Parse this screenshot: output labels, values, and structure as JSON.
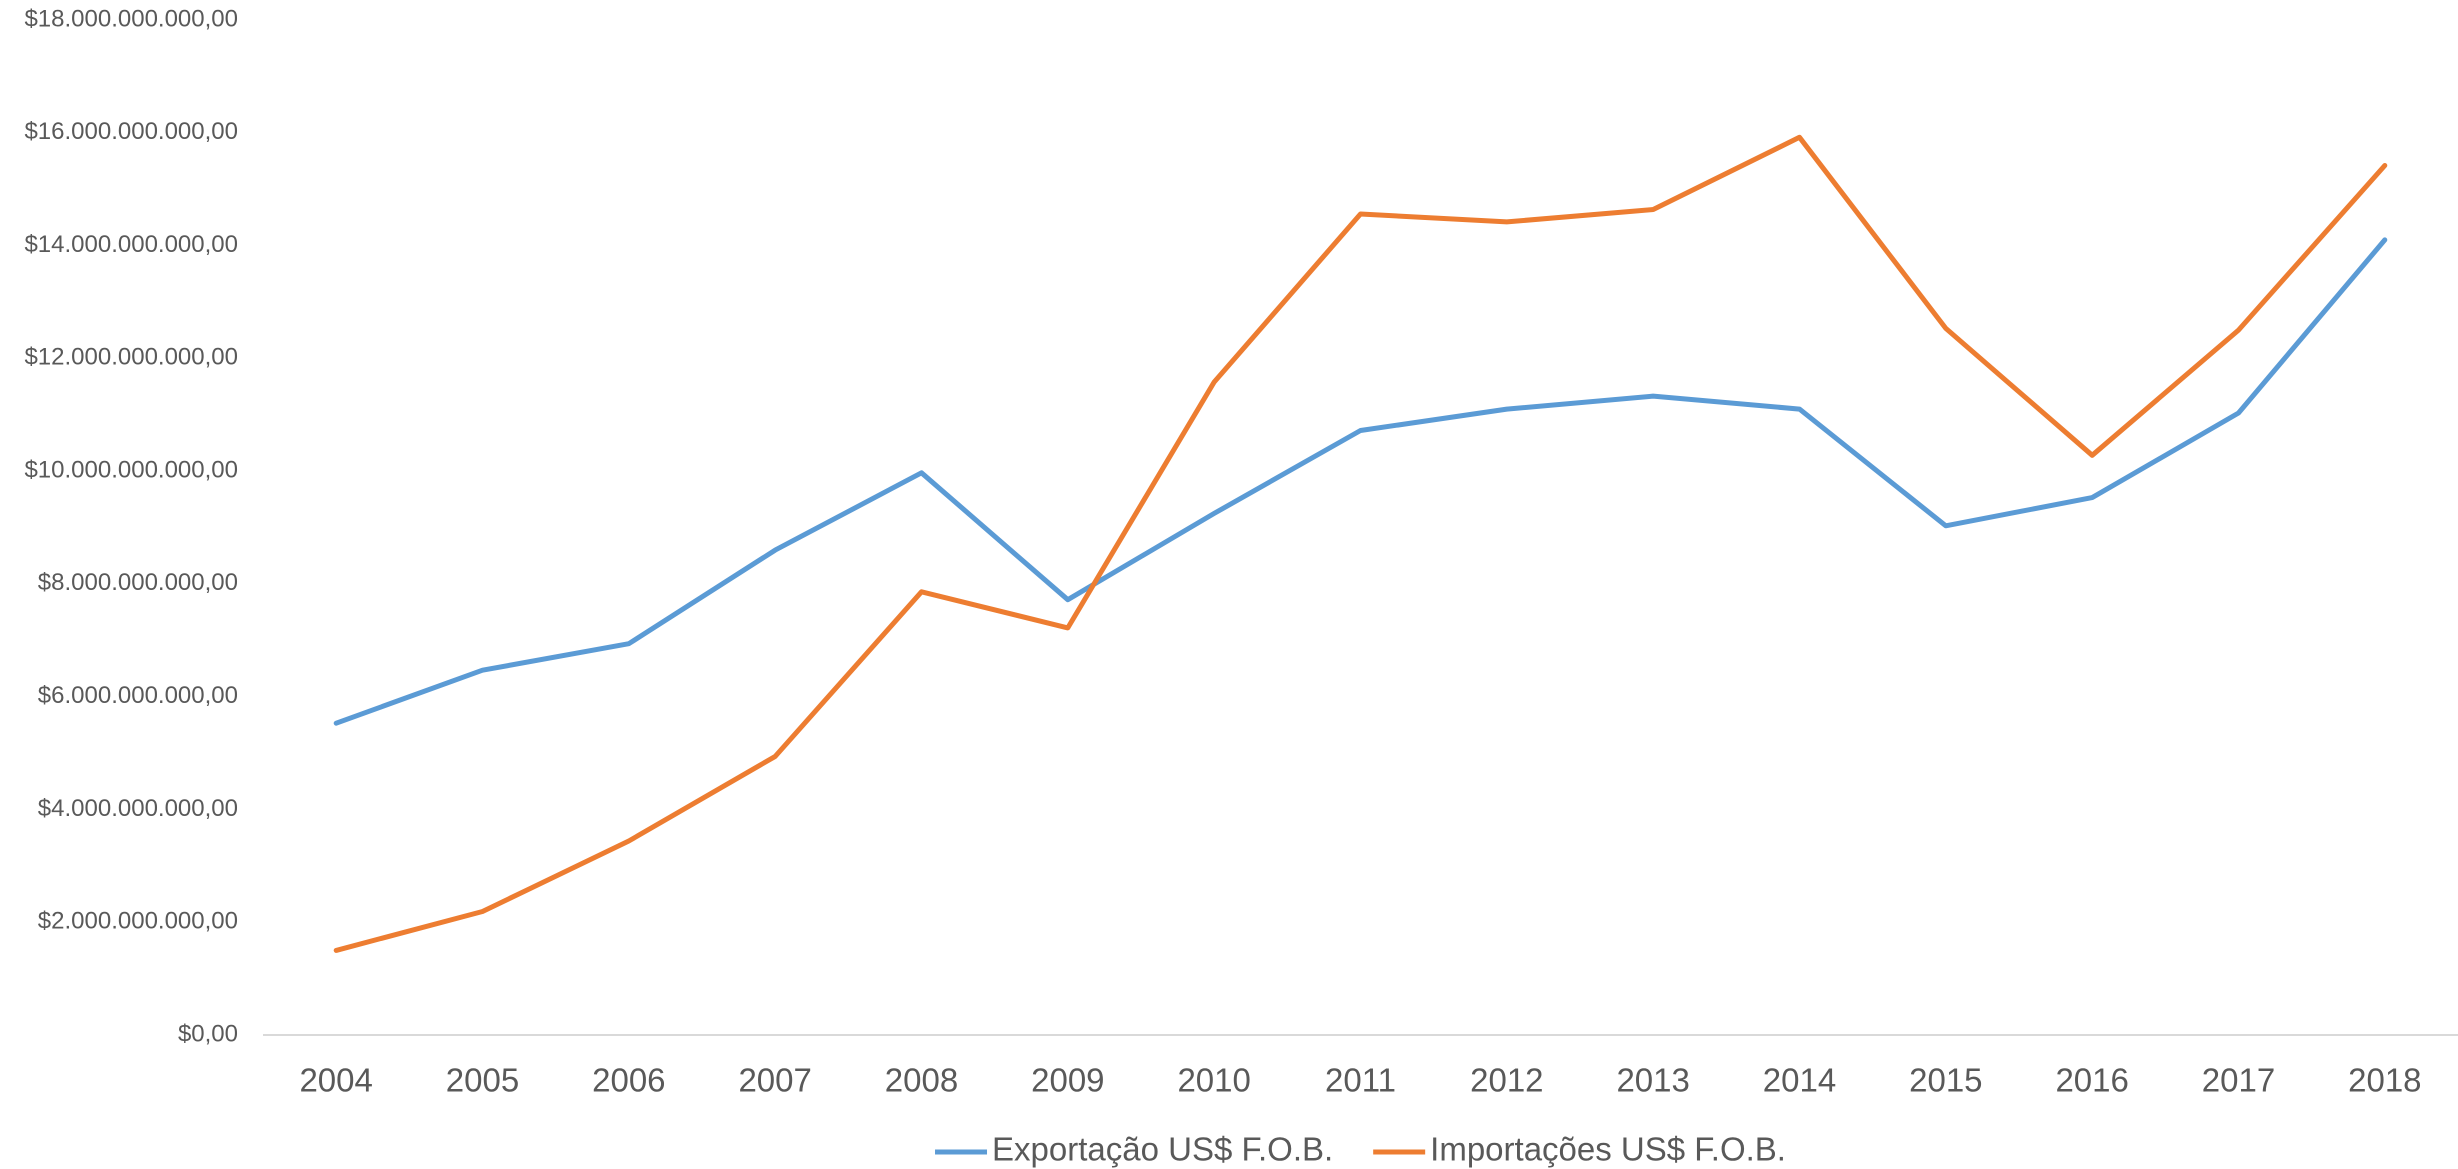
{
  "chart_data": {
    "type": "line",
    "categories": [
      "2004",
      "2005",
      "2006",
      "2007",
      "2008",
      "2009",
      "2010",
      "2011",
      "2012",
      "2013",
      "2014",
      "2015",
      "2016",
      "2017",
      "2018"
    ],
    "series": [
      {
        "name": "Exportação US$ F.O.B.",
        "color": "#5b9bd5",
        "values": [
          5530000000,
          6470000000,
          6940000000,
          8600000000,
          9970000000,
          7720000000,
          9250000000,
          10720000000,
          11100000000,
          11330000000,
          11100000000,
          9030000000,
          9530000000,
          11030000000,
          14100000000
        ]
      },
      {
        "name": "Importações US$ F.O.B.",
        "color": "#ed7d31",
        "values": [
          1500000000,
          2190000000,
          3440000000,
          4940000000,
          7860000000,
          7220000000,
          11580000000,
          14560000000,
          14420000000,
          14640000000,
          15920000000,
          12530000000,
          10280000000,
          12500000000,
          15420000000
        ]
      }
    ],
    "ylim": [
      0,
      18000000000
    ],
    "yticks": [
      {
        "value": 0,
        "label": "$0,00"
      },
      {
        "value": 2000000000,
        "label": "$2.000.000.000,00"
      },
      {
        "value": 4000000000,
        "label": "$4.000.000.000,00"
      },
      {
        "value": 6000000000,
        "label": "$6.000.000.000,00"
      },
      {
        "value": 8000000000,
        "label": "$8.000.000.000,00"
      },
      {
        "value": 10000000000,
        "label": "$10.000.000.000,00"
      },
      {
        "value": 12000000000,
        "label": "$12.000.000.000,00"
      },
      {
        "value": 14000000000,
        "label": "$14.000.000.000,00"
      },
      {
        "value": 16000000000,
        "label": "$16.000.000.000,00"
      },
      {
        "value": 18000000000,
        "label": "$18.000.000.000,00"
      }
    ],
    "grid": false,
    "legend": "bottom"
  }
}
